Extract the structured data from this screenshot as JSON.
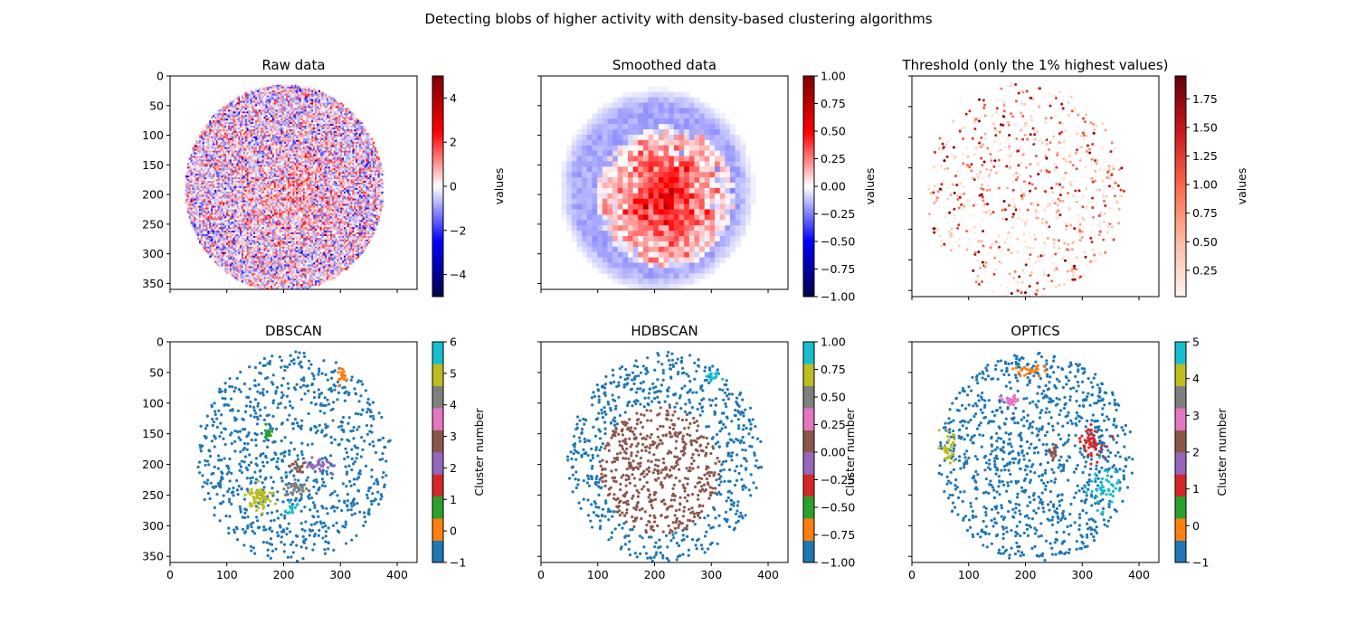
{
  "suptitle": "Detecting blobs of higher activity with density-based clustering algorithms",
  "chart_data": [
    {
      "id": "raw",
      "type": "heatmap",
      "title": "Raw data",
      "image_size": [
        435,
        360
      ],
      "xlim": [
        0,
        435
      ],
      "ylim": [
        360,
        0
      ],
      "xticks": [
        0,
        100,
        200,
        300,
        400
      ],
      "show_xtick_labels": false,
      "yticks": [
        0,
        50,
        100,
        150,
        200,
        250,
        300,
        350
      ],
      "show_ytick_labels": true,
      "disk": {
        "center": [
          200,
          188
        ],
        "radius": 175
      },
      "hotspot": {
        "center": [
          220,
          205
        ],
        "radius": 105
      },
      "colormap": "seismic",
      "colorbar": {
        "label": "values",
        "range": [
          -5,
          5
        ],
        "ticks": [
          4,
          2,
          0,
          -2,
          -4
        ],
        "tick_labels": [
          "4",
          "2",
          "0",
          "−2",
          "−4"
        ]
      }
    },
    {
      "id": "smooth",
      "type": "heatmap",
      "title": "Smoothed data",
      "image_size": [
        435,
        360
      ],
      "xlim": [
        0,
        435
      ],
      "ylim": [
        360,
        0
      ],
      "xticks": [
        0,
        100,
        200,
        300,
        400
      ],
      "show_xtick_labels": false,
      "yticks": [
        0,
        50,
        100,
        150,
        200,
        250,
        300,
        350
      ],
      "show_ytick_labels": false,
      "disk": {
        "center": [
          200,
          188
        ],
        "radius": 175
      },
      "hotspot": {
        "center": [
          215,
          200
        ],
        "radius": 120
      },
      "colormap": "seismic",
      "colorbar": {
        "label": "values",
        "range": [
          -1,
          1
        ],
        "ticks": [
          1,
          0.75,
          0.5,
          0.25,
          0,
          -0.25,
          -0.5,
          -0.75,
          -1
        ],
        "tick_labels": [
          "1.00",
          "0.75",
          "0.50",
          "0.25",
          "0.00",
          "−0.25",
          "−0.50",
          "−0.75",
          "−1.00"
        ]
      }
    },
    {
      "id": "threshold",
      "type": "scatter",
      "title": "Threshold (only the 1% highest values)",
      "xlim": [
        0,
        435
      ],
      "ylim": [
        360,
        0
      ],
      "xticks": [
        0,
        100,
        200,
        300,
        400
      ],
      "show_xtick_labels": false,
      "yticks": [
        0,
        50,
        100,
        150,
        200,
        250,
        300,
        350
      ],
      "show_ytick_labels": false,
      "disk": {
        "center": [
          200,
          188
        ],
        "radius": 175
      },
      "n_points": 850,
      "value_range": [
        0.02,
        1.95
      ],
      "colormap": "Reds",
      "colorbar": {
        "label": "values",
        "range": [
          0.02,
          1.95
        ],
        "ticks": [
          1.75,
          1.5,
          1.25,
          1.0,
          0.75,
          0.5,
          0.25
        ],
        "tick_labels": [
          "1.75",
          "1.50",
          "1.25",
          "1.00",
          "0.75",
          "0.50",
          "0.25"
        ]
      }
    },
    {
      "id": "dbscan",
      "type": "scatter",
      "title": "DBSCAN",
      "xlim": [
        0,
        435
      ],
      "ylim": [
        360,
        0
      ],
      "xticks": [
        0,
        100,
        200,
        300,
        400
      ],
      "show_xtick_labels": true,
      "xtick_labels": [
        "0",
        "100",
        "200",
        "300",
        "400"
      ],
      "yticks": [
        0,
        50,
        100,
        150,
        200,
        250,
        300,
        350
      ],
      "show_ytick_labels": true,
      "disk": {
        "center": [
          218,
          188
        ],
        "radius": 172
      },
      "n_points": 880,
      "noise_label": -1,
      "clusters": [
        {
          "label": 0,
          "center": [
            305,
            55
          ],
          "spread": [
            8,
            12
          ],
          "count": 18
        },
        {
          "label": 1,
          "center": [
            172,
            148
          ],
          "spread": [
            6,
            10
          ],
          "count": 16
        },
        {
          "label": 2,
          "center": [
            265,
            200
          ],
          "spread": [
            22,
            12
          ],
          "count": 30
        },
        {
          "label": 3,
          "center": [
            225,
            205
          ],
          "spread": [
            10,
            8
          ],
          "count": 18
        },
        {
          "label": 4,
          "center": [
            220,
            240
          ],
          "spread": [
            18,
            12
          ],
          "count": 34
        },
        {
          "label": 5,
          "center": [
            158,
            255
          ],
          "spread": [
            18,
            18
          ],
          "count": 62
        },
        {
          "label": 6,
          "center": [
            215,
            272
          ],
          "spread": [
            10,
            8
          ],
          "count": 16
        }
      ],
      "colormap": "tab10",
      "colorbar": {
        "label": "Cluster number",
        "range": [
          -1,
          6
        ],
        "n_colors": 10,
        "ticks": [
          6,
          5,
          4,
          3,
          2,
          1,
          0,
          -1
        ],
        "tick_labels": [
          "6",
          "5",
          "4",
          "3",
          "2",
          "1",
          "0",
          "−1"
        ]
      }
    },
    {
      "id": "hdbscan",
      "type": "scatter",
      "title": "HDBSCAN",
      "xlim": [
        0,
        435
      ],
      "ylim": [
        360,
        0
      ],
      "xticks": [
        0,
        100,
        200,
        300,
        400
      ],
      "show_xtick_labels": true,
      "xtick_labels": [
        "0",
        "100",
        "200",
        "300",
        "400"
      ],
      "yticks": [
        0,
        50,
        100,
        150,
        200,
        250,
        300,
        350
      ],
      "show_ytick_labels": false,
      "disk": {
        "center": [
          218,
          188
        ],
        "radius": 172
      },
      "n_points": 1000,
      "noise_label": -1,
      "clusters": [
        {
          "label": 0,
          "center": [
            210,
            210
          ],
          "spread": [
            105,
            120
          ],
          "count": 520,
          "shape": "disk"
        },
        {
          "label": 1,
          "center": [
            300,
            55
          ],
          "spread": [
            12,
            8
          ],
          "count": 16
        }
      ],
      "colormap": "tab10",
      "colorbar": {
        "label": "Cluster number",
        "range": [
          -1,
          1
        ],
        "n_colors": 10,
        "ticks": [
          1,
          0.75,
          0.5,
          0.25,
          0,
          -0.25,
          -0.5,
          -0.75,
          -1
        ],
        "tick_labels": [
          "1.00",
          "0.75",
          "0.50",
          "0.25",
          "0.00",
          "−0.25",
          "−0.50",
          "−0.75",
          "−1.00"
        ]
      }
    },
    {
      "id": "optics",
      "type": "scatter",
      "title": "OPTICS",
      "xlim": [
        0,
        435
      ],
      "ylim": [
        360,
        0
      ],
      "xticks": [
        0,
        100,
        200,
        300,
        400
      ],
      "show_xtick_labels": true,
      "xtick_labels": [
        "0",
        "100",
        "200",
        "300",
        "400"
      ],
      "yticks": [
        0,
        50,
        100,
        150,
        200,
        250,
        300,
        350
      ],
      "show_ytick_labels": false,
      "disk": {
        "center": [
          218,
          188
        ],
        "radius": 172
      },
      "n_points": 1000,
      "noise_label": -1,
      "clusters": [
        {
          "label": 0,
          "center": [
            210,
            48
          ],
          "spread": [
            30,
            10
          ],
          "count": 28
        },
        {
          "label": 1,
          "center": [
            318,
            165
          ],
          "spread": [
            20,
            22
          ],
          "count": 50
        },
        {
          "label": 2,
          "center": [
            250,
            180
          ],
          "spread": [
            8,
            18
          ],
          "count": 16
        },
        {
          "label": 3,
          "center": [
            175,
            95
          ],
          "spread": [
            15,
            10
          ],
          "count": 24
        },
        {
          "label": 4,
          "center": [
            65,
            172
          ],
          "spread": [
            12,
            30
          ],
          "count": 34
        },
        {
          "label": 5,
          "center": [
            340,
            235
          ],
          "spread": [
            25,
            28
          ],
          "count": 46
        }
      ],
      "colormap": "tab10",
      "colorbar": {
        "label": "Cluster number",
        "range": [
          -1,
          5
        ],
        "n_colors": 10,
        "ticks": [
          5,
          4,
          3,
          2,
          1,
          0,
          -1
        ],
        "tick_labels": [
          "5",
          "4",
          "3",
          "2",
          "1",
          "0",
          "−1"
        ]
      }
    }
  ]
}
